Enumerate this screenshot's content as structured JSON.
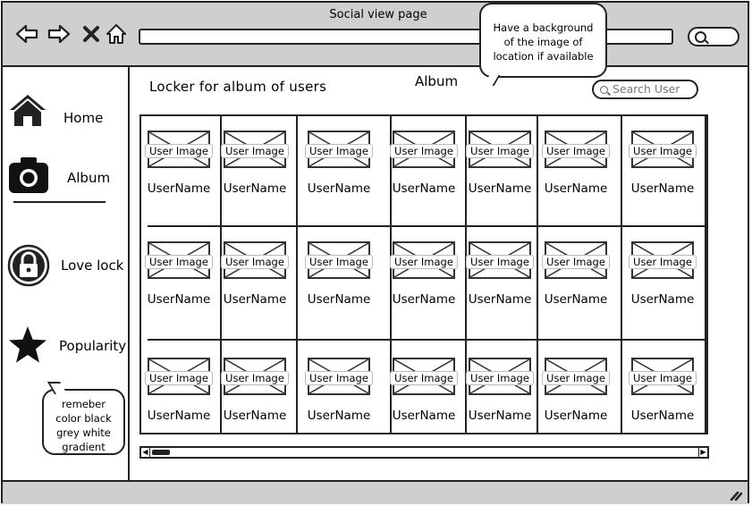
{
  "window": {
    "title": "Social view page"
  },
  "notes": {
    "background_note": [
      "Have a background",
      "of the image of",
      "location if available"
    ],
    "color_note": [
      "remeber",
      "color black",
      "grey white",
      "gradient"
    ]
  },
  "sidebar": {
    "items": [
      {
        "label": "Home",
        "icon": "home-icon"
      },
      {
        "label": "Album",
        "icon": "camera-icon"
      },
      {
        "label": "Love lock",
        "icon": "lock-icon"
      },
      {
        "label": "Popularity",
        "icon": "star-icon"
      }
    ]
  },
  "main": {
    "title": "Locker for album of users",
    "heading": "Album",
    "search": {
      "placeholder": "Search User"
    },
    "grid": {
      "rows": [
        [
          {
            "image": "User Image",
            "name": "UserName"
          },
          {
            "image": "User Image",
            "name": "UserName"
          },
          {
            "image": "User Image",
            "name": "UserName"
          },
          {
            "image": "User Image",
            "name": "UserName"
          },
          {
            "image": "User Image",
            "name": "UserName"
          },
          {
            "image": "User Image",
            "name": "UserName"
          },
          {
            "image": "User Image",
            "name": "UserName"
          }
        ],
        [
          {
            "image": "User Image",
            "name": "UserName"
          },
          {
            "image": "User Image",
            "name": "UserName"
          },
          {
            "image": "User Image",
            "name": "UserName"
          },
          {
            "image": "User Image",
            "name": "UserName"
          },
          {
            "image": "User Image",
            "name": "UserName"
          },
          {
            "image": "User Image",
            "name": "UserName"
          },
          {
            "image": "User Image",
            "name": "UserName"
          }
        ],
        [
          {
            "image": "User Image",
            "name": "UserName"
          },
          {
            "image": "User Image",
            "name": "UserName"
          },
          {
            "image": "User Image",
            "name": "UserName"
          },
          {
            "image": "User Image",
            "name": "UserName"
          },
          {
            "image": "User Image",
            "name": "UserName"
          },
          {
            "image": "User Image",
            "name": "UserName"
          },
          {
            "image": "User Image",
            "name": "UserName"
          }
        ]
      ]
    }
  },
  "colors": {
    "chrome": "#cfcfcf",
    "ink": "#222222",
    "background": "#ffffff"
  }
}
